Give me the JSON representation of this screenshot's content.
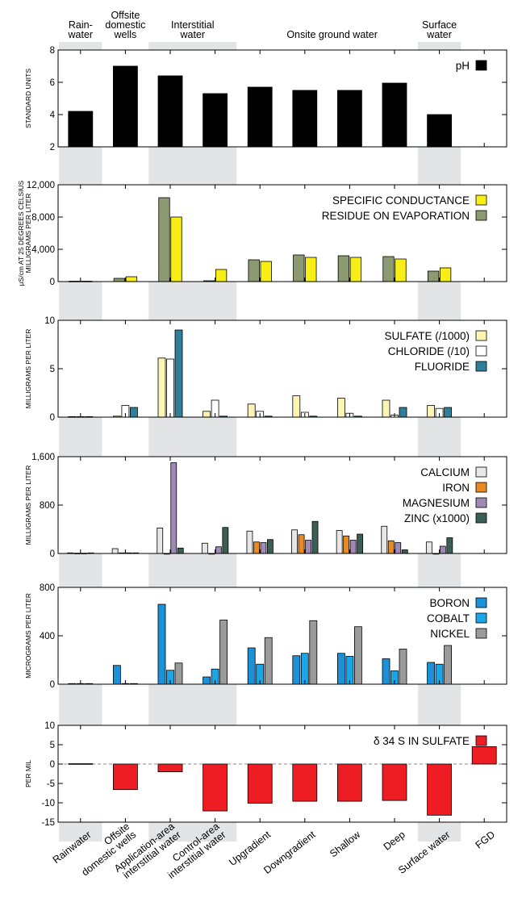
{
  "header_groups": [
    {
      "label_lines": [
        "Rain-",
        "water"
      ]
    },
    {
      "label_lines": [
        "Offsite",
        "domestic",
        "wells"
      ]
    },
    {
      "label_lines": [
        "Interstitial",
        "water"
      ]
    },
    {
      "label_lines": [
        "Onsite ground water"
      ]
    },
    {
      "label_lines": [
        "Surface",
        "water"
      ]
    }
  ],
  "categories": [
    "Rainwater",
    "Offsite domestic wells",
    "Application-area interstitial water",
    "Control-area interstitial water",
    "Upgradient",
    "Downgradient",
    "Shallow",
    "Deep",
    "Surface water",
    "FGD"
  ],
  "category_label_lines": [
    [
      "Rainwater"
    ],
    [
      "Offsite",
      "domestic wells"
    ],
    [
      "Application-area",
      "interstitial water"
    ],
    [
      "Control-area",
      "interstitial water"
    ],
    [
      "Upgradient"
    ],
    [
      "Downgradient"
    ],
    [
      "Shallow"
    ],
    [
      "Deep"
    ],
    [
      "Surface water"
    ],
    [
      "FGD"
    ]
  ],
  "shaded_category_groups": [
    [
      0,
      0
    ],
    [
      2,
      3
    ],
    [
      8,
      8
    ]
  ],
  "chart_data": [
    {
      "type": "bar",
      "ylabel_lines": [
        "STANDARD UNITS"
      ],
      "ylim": [
        2,
        8
      ],
      "yticks": [
        2,
        4,
        6,
        8
      ],
      "ytick_labels": [
        "2",
        "4",
        "6",
        "8"
      ],
      "legend_position": "top-right",
      "series": [
        {
          "name": "pH",
          "color": "#000000",
          "values": [
            4.2,
            7.0,
            6.4,
            5.3,
            5.7,
            5.5,
            5.5,
            5.95,
            4.0,
            null
          ]
        }
      ]
    },
    {
      "type": "bar",
      "ylabel_lines": [
        "μS/cm AT 25 DEGREES CELSIUS",
        "MILLIGRAMS PER LITER"
      ],
      "ylim": [
        0,
        12000
      ],
      "yticks": [
        0,
        4000,
        8000,
        12000
      ],
      "ytick_labels": [
        "0",
        "4,000",
        "8,000",
        "12,000"
      ],
      "legend_position": "top-right",
      "series": [
        {
          "name": "RESIDUE ON EVAPORATION",
          "color": "#8c9a72",
          "values": [
            50,
            400,
            10400,
            100,
            2700,
            3300,
            3200,
            3100,
            1300,
            null
          ]
        },
        {
          "name": "SPECIFIC CONDUCTANCE",
          "color": "#f6ee14",
          "values": [
            50,
            600,
            8000,
            1500,
            2500,
            3000,
            3000,
            2800,
            1700,
            null
          ]
        }
      ],
      "legend_order": [
        1,
        0
      ]
    },
    {
      "type": "bar",
      "ylabel_lines": [
        "MILLIGRAMS PER LITER"
      ],
      "ylim": [
        0,
        10
      ],
      "yticks": [
        0,
        5,
        10
      ],
      "ytick_labels": [
        "0",
        "5",
        "10"
      ],
      "legend_position": "top-right",
      "series": [
        {
          "name": "SULFATE (/1000)",
          "color": "#fbf4b4",
          "values": [
            0.05,
            0.1,
            6.1,
            0.6,
            1.35,
            2.2,
            1.95,
            1.75,
            1.2,
            null
          ]
        },
        {
          "name": "CHLORIDE (/10)",
          "color": "#ffffff",
          "values": [
            0.05,
            1.2,
            6.0,
            1.75,
            0.6,
            0.5,
            0.4,
            0.2,
            0.9,
            null
          ]
        },
        {
          "name": "FLUORIDE",
          "color": "#2e7f97",
          "values": [
            0.05,
            1.0,
            9.0,
            0.1,
            0.1,
            0.1,
            0.1,
            1.0,
            1.0,
            null
          ]
        }
      ]
    },
    {
      "type": "bar",
      "ylabel_lines": [
        "MILLIGRAMS PER LITER"
      ],
      "ylim": [
        0,
        1600
      ],
      "yticks": [
        0,
        800,
        1600
      ],
      "ytick_labels": [
        "0",
        "800",
        "1,600"
      ],
      "legend_position": "top-right",
      "series": [
        {
          "name": "CALCIUM",
          "color": "#e7e7e7",
          "values": [
            10,
            80,
            420,
            170,
            370,
            390,
            380,
            450,
            190,
            null
          ]
        },
        {
          "name": "IRON",
          "color": "#ea8a25",
          "values": [
            5,
            10,
            0,
            0,
            190,
            310,
            290,
            210,
            0,
            null
          ]
        },
        {
          "name": "MAGNESIUM",
          "color": "#9f89b5",
          "values": [
            5,
            10,
            1500,
            110,
            180,
            220,
            220,
            180,
            120,
            null
          ]
        },
        {
          "name": "ZINC (x1000)",
          "color": "#3c5f55",
          "values": [
            10,
            10,
            90,
            430,
            230,
            530,
            320,
            60,
            260,
            null
          ]
        }
      ]
    },
    {
      "type": "bar",
      "ylabel_lines": [
        "MICROGRAMS PER LITER"
      ],
      "ylim": [
        0,
        800
      ],
      "yticks": [
        0,
        400,
        800
      ],
      "ytick_labels": [
        "0",
        "400",
        "800"
      ],
      "legend_position": "top-right",
      "series": [
        {
          "name": "BORON",
          "color": "#1b92d8",
          "values": [
            5,
            155,
            660,
            60,
            300,
            235,
            255,
            210,
            180,
            null
          ]
        },
        {
          "name": "COBALT",
          "color": "#1ba6e8",
          "values": [
            5,
            5,
            115,
            125,
            165,
            255,
            230,
            110,
            165,
            null
          ]
        },
        {
          "name": "NICKEL",
          "color": "#9b9b9b",
          "values": [
            5,
            5,
            175,
            530,
            385,
            525,
            475,
            290,
            320,
            null
          ]
        }
      ]
    },
    {
      "type": "bar",
      "ylabel_lines": [
        "PER MIL"
      ],
      "ylim": [
        -15,
        10
      ],
      "yticks": [
        -15,
        -10,
        -5,
        0,
        5,
        10
      ],
      "ytick_labels": [
        "-15",
        "-10",
        "-5",
        "0",
        "5",
        "10"
      ],
      "legend_position": "top-right",
      "zero_line": true,
      "series": [
        {
          "name": "δ 34 S IN SULFATE",
          "color": "#ee1c23",
          "values": [
            0.1,
            -6.6,
            -2.0,
            -12.1,
            -10.1,
            -9.6,
            -9.6,
            -9.4,
            -13.2,
            4.5
          ]
        }
      ]
    }
  ]
}
